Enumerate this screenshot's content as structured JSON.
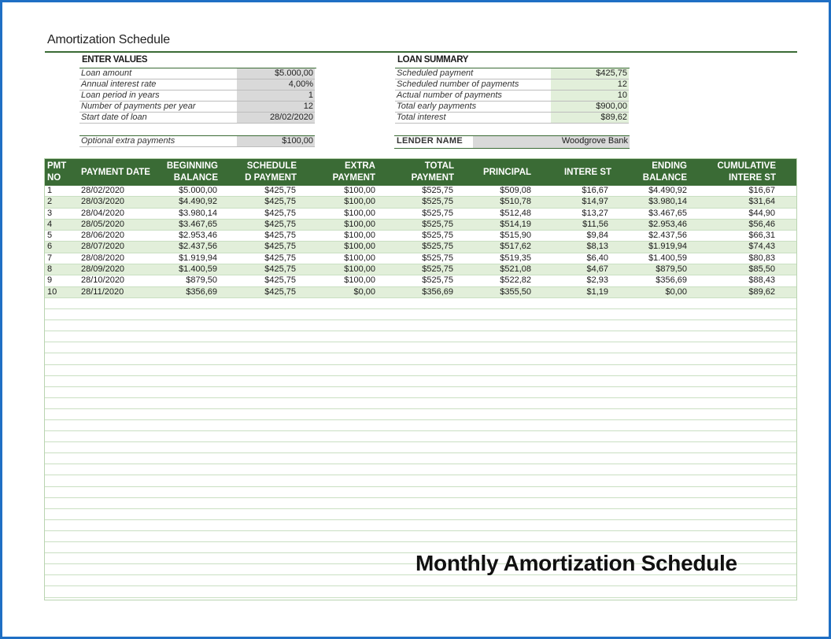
{
  "title": "Amortization Schedule",
  "enter_values": {
    "heading": "ENTER VALUES",
    "items": [
      {
        "label": "Loan amount",
        "value": "$5.000,00"
      },
      {
        "label": "Annual interest rate",
        "value": "4,00%"
      },
      {
        "label": "Loan period in years",
        "value": "1"
      },
      {
        "label": "Number of payments per year",
        "value": "12"
      },
      {
        "label": "Start date of loan",
        "value": "28/02/2020"
      }
    ],
    "extra": {
      "label": "Optional extra payments",
      "value": "$100,00"
    }
  },
  "loan_summary": {
    "heading": "LOAN SUMMARY",
    "items": [
      {
        "label": "Scheduled payment",
        "value": "$425,75"
      },
      {
        "label": "Scheduled number of payments",
        "value": "12"
      },
      {
        "label": "Actual number of payments",
        "value": "10"
      },
      {
        "label": "Total early payments",
        "value": "$900,00"
      },
      {
        "label": "Total interest",
        "value": "$89,62"
      }
    ],
    "lender": {
      "label": "LENDER NAME",
      "value": "Woodgrove Bank"
    }
  },
  "table": {
    "headers": [
      "PMT\nNO",
      "PAYMENT DATE",
      "BEGINNING\nBALANCE",
      "SCHEDULE\nD PAYMENT",
      "EXTRA\nPAYMENT",
      "TOTAL\nPAYMENT",
      "PRINCIPAL",
      "INTERE ST",
      "ENDING\nBALANCE",
      "CUMULATIVE\nINTERE ST"
    ],
    "rows": [
      [
        "1",
        "28/02/2020",
        "$5.000,00",
        "$425,75",
        "$100,00",
        "$525,75",
        "$509,08",
        "$16,67",
        "$4.490,92",
        "$16,67"
      ],
      [
        "2",
        "28/03/2020",
        "$4.490,92",
        "$425,75",
        "$100,00",
        "$525,75",
        "$510,78",
        "$14,97",
        "$3.980,14",
        "$31,64"
      ],
      [
        "3",
        "28/04/2020",
        "$3.980,14",
        "$425,75",
        "$100,00",
        "$525,75",
        "$512,48",
        "$13,27",
        "$3.467,65",
        "$44,90"
      ],
      [
        "4",
        "28/05/2020",
        "$3.467,65",
        "$425,75",
        "$100,00",
        "$525,75",
        "$514,19",
        "$11,56",
        "$2.953,46",
        "$56,46"
      ],
      [
        "5",
        "28/06/2020",
        "$2.953,46",
        "$425,75",
        "$100,00",
        "$525,75",
        "$515,90",
        "$9,84",
        "$2.437,56",
        "$66,31"
      ],
      [
        "6",
        "28/07/2020",
        "$2.437,56",
        "$425,75",
        "$100,00",
        "$525,75",
        "$517,62",
        "$8,13",
        "$1.919,94",
        "$74,43"
      ],
      [
        "7",
        "28/08/2020",
        "$1.919,94",
        "$425,75",
        "$100,00",
        "$525,75",
        "$519,35",
        "$6,40",
        "$1.400,59",
        "$80,83"
      ],
      [
        "8",
        "28/09/2020",
        "$1.400,59",
        "$425,75",
        "$100,00",
        "$525,75",
        "$521,08",
        "$4,67",
        "$879,50",
        "$85,50"
      ],
      [
        "9",
        "28/10/2020",
        "$879,50",
        "$425,75",
        "$100,00",
        "$525,75",
        "$522,82",
        "$2,93",
        "$356,69",
        "$88,43"
      ],
      [
        "10",
        "28/11/2020",
        "$356,69",
        "$425,75",
        "$0,00",
        "$356,69",
        "$355,50",
        "$1,19",
        "$0,00",
        "$89,62"
      ]
    ]
  },
  "caption": "Monthly Amortization Schedule",
  "colors": {
    "accent_green": "#3a6b35",
    "row_shade": "#e2efda",
    "input_grey": "#d9d9d9",
    "frame_blue": "#1f6fc4"
  }
}
